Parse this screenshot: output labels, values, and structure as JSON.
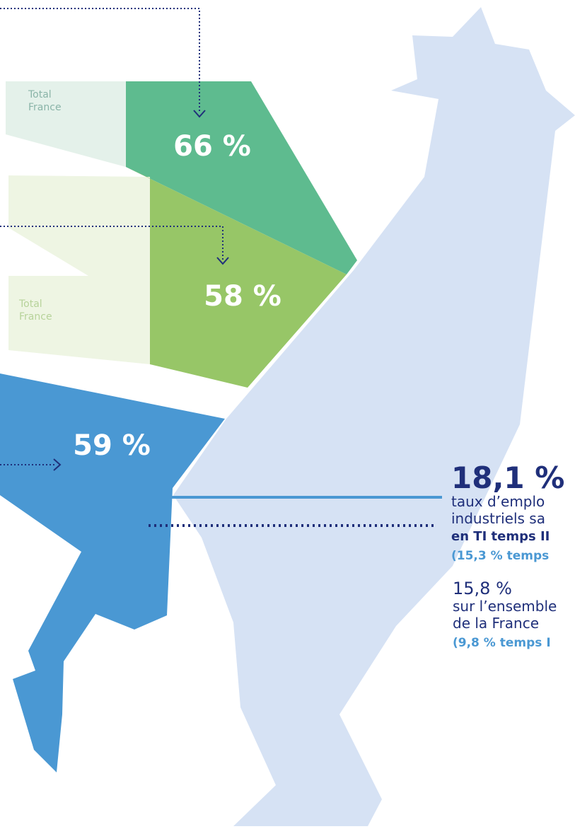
{
  "panels": [
    {
      "total_label": [
        "Total",
        "France"
      ],
      "value": "66 %"
    },
    {
      "total_label": [
        "Total",
        "France"
      ],
      "value": "58 %"
    },
    {
      "value": "59 %"
    }
  ],
  "stats": [
    {
      "value": "18,1 %",
      "lines": [
        "taux d’emplo",
        "industriels sa",
        "en TI temps II",
        "(15,3 % temps"
      ]
    },
    {
      "value": "15,8 %",
      "lines": [
        "sur l’ensemble",
        "de la France",
        "(9,8 % temps I"
      ]
    }
  ]
}
